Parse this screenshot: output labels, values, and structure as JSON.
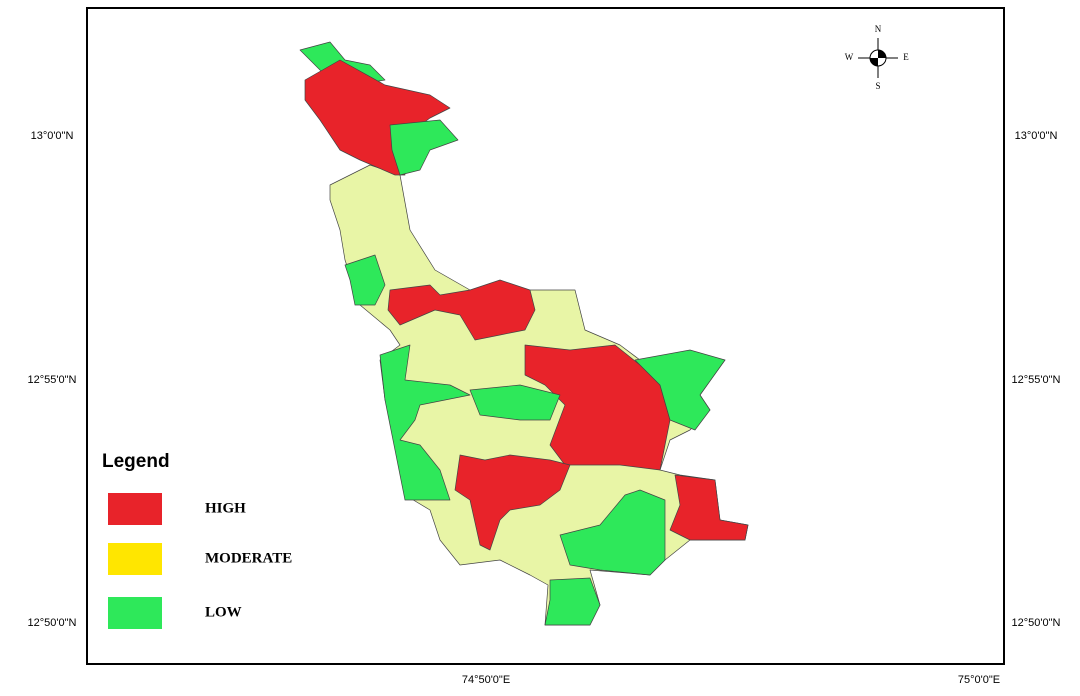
{
  "latitude_labels": [
    "13°0'0\"N",
    "12°55'0\"N",
    "12°50'0\"N"
  ],
  "longitude_labels": [
    "74°50'0\"E",
    "75°0'0\"E"
  ],
  "compass": {
    "north": "N",
    "south": "S",
    "west": "W",
    "east": "E"
  },
  "legend": {
    "title": "Legend",
    "items": [
      {
        "label": "HIGH",
        "color": "#e8232a"
      },
      {
        "label": "MODERATE",
        "color": "#ffe600"
      },
      {
        "label": "LOW",
        "color": "#2ee85a"
      }
    ]
  }
}
